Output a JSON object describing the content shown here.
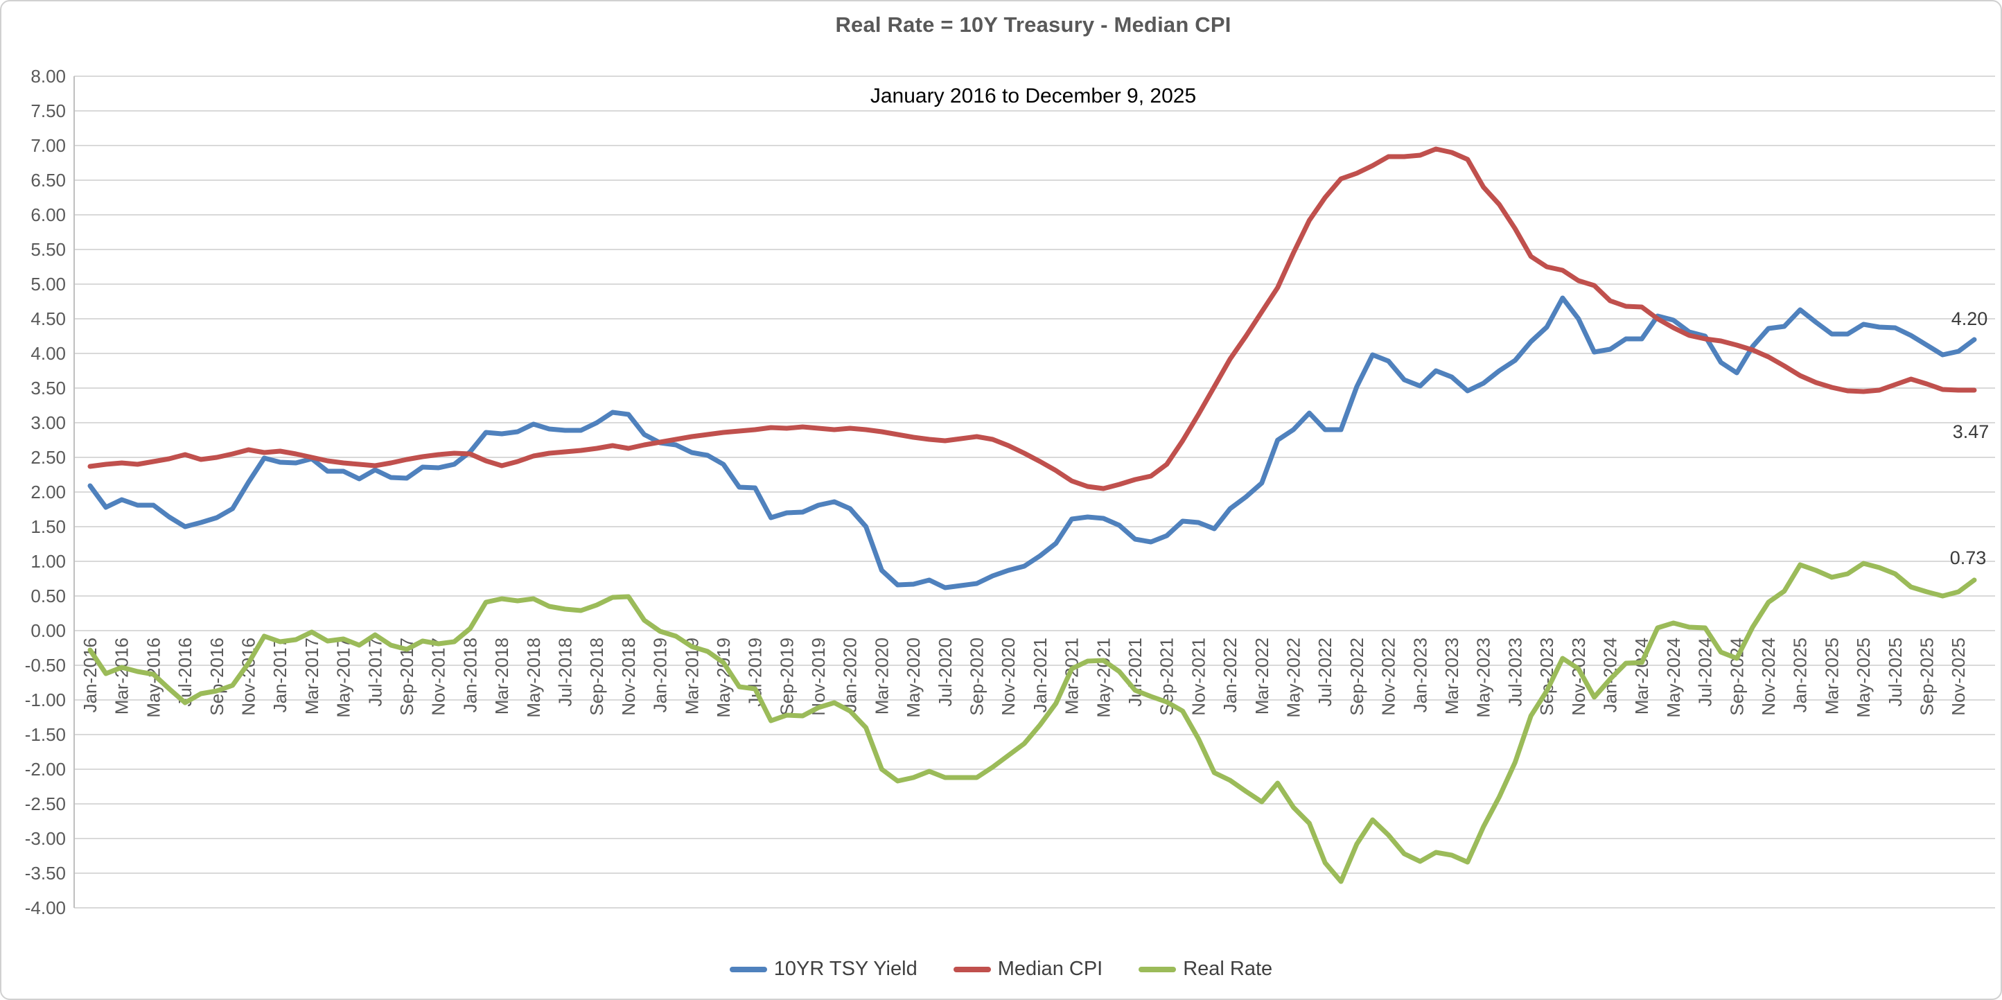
{
  "title": "Real Rate = 10Y Treasury - Median CPI",
  "subtitle": "January 2016 to December 9, 2025",
  "legend": {
    "items": [
      {
        "label": "10YR TSY Yield",
        "color": "#4F81BD"
      },
      {
        "label": "Median CPI",
        "color": "#C0504D"
      },
      {
        "label": "Real Rate",
        "color": "#9BBB59"
      }
    ]
  },
  "colors": {
    "grid": "#D9D9D9",
    "axis_line": "#BFBFBF",
    "tick_text": "#595959",
    "data_label_text": "#3b3b3b",
    "title_text": "#595959",
    "background": "#ffffff"
  },
  "chart_data": {
    "type": "line",
    "title": "Real Rate = 10Y Treasury - Median CPI",
    "subtitle": "January 2016 to December 9, 2025",
    "xlabel": "",
    "ylabel": "",
    "ylim": [
      -4.0,
      8.0
    ],
    "ytick_step": 0.5,
    "grid": true,
    "legend_position": "bottom",
    "y_tick_labels": [
      "8.00",
      "7.50",
      "7.00",
      "6.50",
      "6.00",
      "5.50",
      "5.00",
      "4.50",
      "4.00",
      "3.50",
      "3.00",
      "2.50",
      "2.00",
      "1.50",
      "1.00",
      "0.50",
      "0.00",
      "-0.50",
      "-1.00",
      "-1.50",
      "-2.00",
      "-2.50",
      "-3.00",
      "-3.50",
      "-4.00"
    ],
    "x_tick_labels": [
      "Jan-2016",
      "Mar-2016",
      "May-2016",
      "Jul-2016",
      "Sep-2016",
      "Nov-2016",
      "Jan-2017",
      "Mar-2017",
      "May-2017",
      "Jul-2017",
      "Sep-2017",
      "Nov-2017",
      "Jan-2018",
      "Mar-2018",
      "May-2018",
      "Jul-2018",
      "Sep-2018",
      "Nov-2018",
      "Jan-2019",
      "Mar-2019",
      "May-2019",
      "Jul-2019",
      "Sep-2019",
      "Nov-2019",
      "Jan-2020",
      "Mar-2020",
      "May-2020",
      "Jul-2020",
      "Sep-2020",
      "Nov-2020",
      "Jan-2021",
      "Mar-2021",
      "May-2021",
      "Jul-2021",
      "Sep-2021",
      "Nov-2021",
      "Jan-2022",
      "Mar-2022",
      "May-2022",
      "Jul-2022",
      "Sep-2022",
      "Nov-2022",
      "Jan-2023",
      "Mar-2023",
      "May-2023",
      "Jul-2023",
      "Sep-2023",
      "Nov-2023",
      "Jan-2024",
      "Mar-2024",
      "May-2024",
      "Jul-2024",
      "Sep-2024",
      "Nov-2024",
      "Jan-2025",
      "Mar-2025",
      "May-2025",
      "Jul-2025",
      "Sep-2025",
      "Nov-2025"
    ],
    "x_points_per_tick": 2,
    "n_points": 120,
    "series": [
      {
        "name": "10YR TSY Yield",
        "color": "#4F81BD",
        "end_label": "4.20",
        "values": [
          2.09,
          1.78,
          1.89,
          1.81,
          1.81,
          1.64,
          1.5,
          1.56,
          1.63,
          1.76,
          2.14,
          2.49,
          2.43,
          2.42,
          2.48,
          2.3,
          2.3,
          2.19,
          2.32,
          2.21,
          2.2,
          2.36,
          2.35,
          2.4,
          2.58,
          2.86,
          2.84,
          2.87,
          2.98,
          2.91,
          2.89,
          2.89,
          3.0,
          3.15,
          3.12,
          2.83,
          2.71,
          2.68,
          2.57,
          2.53,
          2.4,
          2.07,
          2.06,
          1.63,
          1.7,
          1.71,
          1.81,
          1.86,
          1.76,
          1.5,
          0.87,
          0.66,
          0.67,
          0.73,
          0.62,
          0.65,
          0.68,
          0.79,
          0.87,
          0.93,
          1.08,
          1.26,
          1.61,
          1.64,
          1.62,
          1.52,
          1.32,
          1.28,
          1.37,
          1.58,
          1.56,
          1.47,
          1.76,
          1.93,
          2.13,
          2.75,
          2.9,
          3.14,
          2.9,
          2.9,
          3.52,
          3.98,
          3.89,
          3.62,
          3.53,
          3.75,
          3.66,
          3.46,
          3.57,
          3.75,
          3.9,
          4.17,
          4.38,
          4.8,
          4.5,
          4.02,
          4.06,
          4.21,
          4.21,
          4.54,
          4.48,
          4.31,
          4.25,
          3.87,
          3.72,
          4.1,
          4.36,
          4.39,
          4.63,
          4.45,
          4.28,
          4.28,
          4.42,
          4.38,
          4.37,
          4.26,
          4.12,
          3.98,
          4.03,
          4.2
        ]
      },
      {
        "name": "Median CPI",
        "color": "#C0504D",
        "end_label": "3.47",
        "values": [
          2.37,
          2.4,
          2.42,
          2.4,
          2.44,
          2.48,
          2.54,
          2.47,
          2.5,
          2.55,
          2.61,
          2.57,
          2.59,
          2.55,
          2.5,
          2.45,
          2.42,
          2.4,
          2.38,
          2.42,
          2.47,
          2.51,
          2.54,
          2.56,
          2.55,
          2.45,
          2.38,
          2.44,
          2.52,
          2.56,
          2.58,
          2.6,
          2.63,
          2.67,
          2.63,
          2.68,
          2.72,
          2.76,
          2.8,
          2.83,
          2.86,
          2.88,
          2.9,
          2.93,
          2.92,
          2.94,
          2.92,
          2.9,
          2.92,
          2.9,
          2.87,
          2.83,
          2.79,
          2.76,
          2.74,
          2.77,
          2.8,
          2.76,
          2.67,
          2.56,
          2.44,
          2.31,
          2.16,
          2.08,
          2.05,
          2.11,
          2.18,
          2.23,
          2.4,
          2.74,
          3.12,
          3.52,
          3.92,
          4.25,
          4.6,
          4.95,
          5.45,
          5.92,
          6.25,
          6.52,
          6.6,
          6.71,
          6.84,
          6.84,
          6.86,
          6.95,
          6.9,
          6.8,
          6.4,
          6.15,
          5.8,
          5.4,
          5.25,
          5.2,
          5.05,
          4.98,
          4.76,
          4.68,
          4.67,
          4.5,
          4.37,
          4.26,
          4.21,
          4.18,
          4.12,
          4.05,
          3.95,
          3.82,
          3.68,
          3.58,
          3.51,
          3.46,
          3.45,
          3.47,
          3.55,
          3.63,
          3.56,
          3.48,
          3.47,
          3.47
        ]
      },
      {
        "name": "Real Rate",
        "color": "#9BBB59",
        "end_label": "0.73",
        "values": [
          -0.28,
          -0.62,
          -0.53,
          -0.59,
          -0.63,
          -0.84,
          -1.04,
          -0.91,
          -0.87,
          -0.79,
          -0.47,
          -0.08,
          -0.16,
          -0.13,
          -0.02,
          -0.15,
          -0.12,
          -0.21,
          -0.06,
          -0.21,
          -0.27,
          -0.15,
          -0.19,
          -0.16,
          0.03,
          0.41,
          0.46,
          0.43,
          0.46,
          0.35,
          0.31,
          0.29,
          0.37,
          0.48,
          0.49,
          0.15,
          -0.01,
          -0.08,
          -0.23,
          -0.3,
          -0.46,
          -0.81,
          -0.84,
          -1.3,
          -1.22,
          -1.23,
          -1.11,
          -1.04,
          -1.16,
          -1.4,
          -2.0,
          -2.17,
          -2.12,
          -2.03,
          -2.12,
          -2.12,
          -2.12,
          -1.97,
          -1.8,
          -1.63,
          -1.36,
          -1.05,
          -0.55,
          -0.44,
          -0.43,
          -0.59,
          -0.86,
          -0.95,
          -1.03,
          -1.16,
          -1.56,
          -2.05,
          -2.16,
          -2.32,
          -2.47,
          -2.2,
          -2.55,
          -2.78,
          -3.35,
          -3.62,
          -3.08,
          -2.73,
          -2.95,
          -3.22,
          -3.33,
          -3.2,
          -3.24,
          -3.34,
          -2.83,
          -2.4,
          -1.9,
          -1.23,
          -0.87,
          -0.4,
          -0.55,
          -0.96,
          -0.7,
          -0.47,
          -0.46,
          0.04,
          0.11,
          0.05,
          0.04,
          -0.31,
          -0.4,
          0.05,
          0.41,
          0.57,
          0.95,
          0.87,
          0.77,
          0.82,
          0.97,
          0.91,
          0.82,
          0.63,
          0.56,
          0.5,
          0.56,
          0.73
        ]
      }
    ]
  }
}
